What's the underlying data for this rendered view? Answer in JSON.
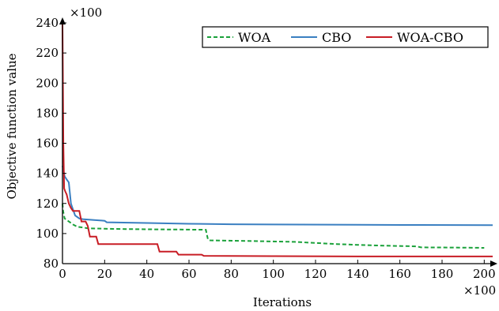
{
  "chart_data": {
    "type": "line",
    "xlabel": "Iterations",
    "ylabel": "Objective function value",
    "x_multiplier": "×100",
    "y_multiplier": "×100",
    "xlim": [
      0,
      204
    ],
    "ylim": [
      8000,
      24000
    ],
    "x_ticks": [
      0,
      20,
      40,
      60,
      80,
      100,
      120,
      140,
      160,
      180,
      200
    ],
    "y_ticks": [
      8000,
      10000,
      12000,
      14000,
      16000,
      18000,
      20000,
      22000,
      24000
    ],
    "x_tick_labels": [
      "0",
      "20",
      "40",
      "60",
      "80",
      "100",
      "120",
      "140",
      "160",
      "180",
      "200"
    ],
    "y_tick_labels": [
      "80",
      "100",
      "120",
      "140",
      "160",
      "180",
      "200",
      "220",
      "240"
    ],
    "legend_position": "top-right",
    "series": [
      {
        "name": "WOA",
        "color": "#1aa13a",
        "style": "dashed",
        "points": [
          [
            0,
            12000
          ],
          [
            0.3,
            11500
          ],
          [
            1,
            11000
          ],
          [
            3,
            10800
          ],
          [
            5,
            10600
          ],
          [
            7,
            10450
          ],
          [
            10,
            10400
          ],
          [
            12,
            10350
          ],
          [
            20,
            10320
          ],
          [
            30,
            10300
          ],
          [
            40,
            10280
          ],
          [
            50,
            10270
          ],
          [
            60,
            10260
          ],
          [
            68,
            10250
          ],
          [
            69,
            9600
          ],
          [
            70,
            9550
          ],
          [
            90,
            9500
          ],
          [
            110,
            9450
          ],
          [
            130,
            9300
          ],
          [
            140,
            9250
          ],
          [
            150,
            9200
          ],
          [
            168,
            9150
          ],
          [
            170,
            9080
          ],
          [
            185,
            9070
          ],
          [
            200,
            9050
          ]
        ]
      },
      {
        "name": "CBO",
        "color": "#3a7fc1",
        "style": "solid",
        "points": [
          [
            0,
            14500
          ],
          [
            0.5,
            14200
          ],
          [
            1,
            13800
          ],
          [
            2,
            13600
          ],
          [
            3,
            13400
          ],
          [
            4,
            12000
          ],
          [
            5,
            11600
          ],
          [
            6,
            11200
          ],
          [
            8,
            11000
          ],
          [
            10,
            10950
          ],
          [
            15,
            10900
          ],
          [
            20,
            10850
          ],
          [
            21,
            10750
          ],
          [
            40,
            10700
          ],
          [
            60,
            10650
          ],
          [
            80,
            10620
          ],
          [
            100,
            10600
          ],
          [
            140,
            10580
          ],
          [
            170,
            10570
          ],
          [
            204,
            10560
          ]
        ]
      },
      {
        "name": "WOA-CBO",
        "color": "#c81d25",
        "style": "solid",
        "points": [
          [
            0,
            24000
          ],
          [
            0.4,
            16000
          ],
          [
            0.8,
            13000
          ],
          [
            1.3,
            12800
          ],
          [
            2,
            12600
          ],
          [
            3,
            12000
          ],
          [
            4,
            11700
          ],
          [
            5,
            11500
          ],
          [
            6,
            11500
          ],
          [
            8,
            11500
          ],
          [
            9,
            10800
          ],
          [
            11,
            10800
          ],
          [
            12,
            10500
          ],
          [
            13,
            9800
          ],
          [
            16,
            9800
          ],
          [
            17,
            9300
          ],
          [
            45,
            9300
          ],
          [
            46,
            8800
          ],
          [
            54,
            8800
          ],
          [
            55,
            8600
          ],
          [
            66,
            8600
          ],
          [
            67,
            8520
          ],
          [
            100,
            8500
          ],
          [
            140,
            8480
          ],
          [
            204,
            8480
          ]
        ]
      }
    ]
  }
}
